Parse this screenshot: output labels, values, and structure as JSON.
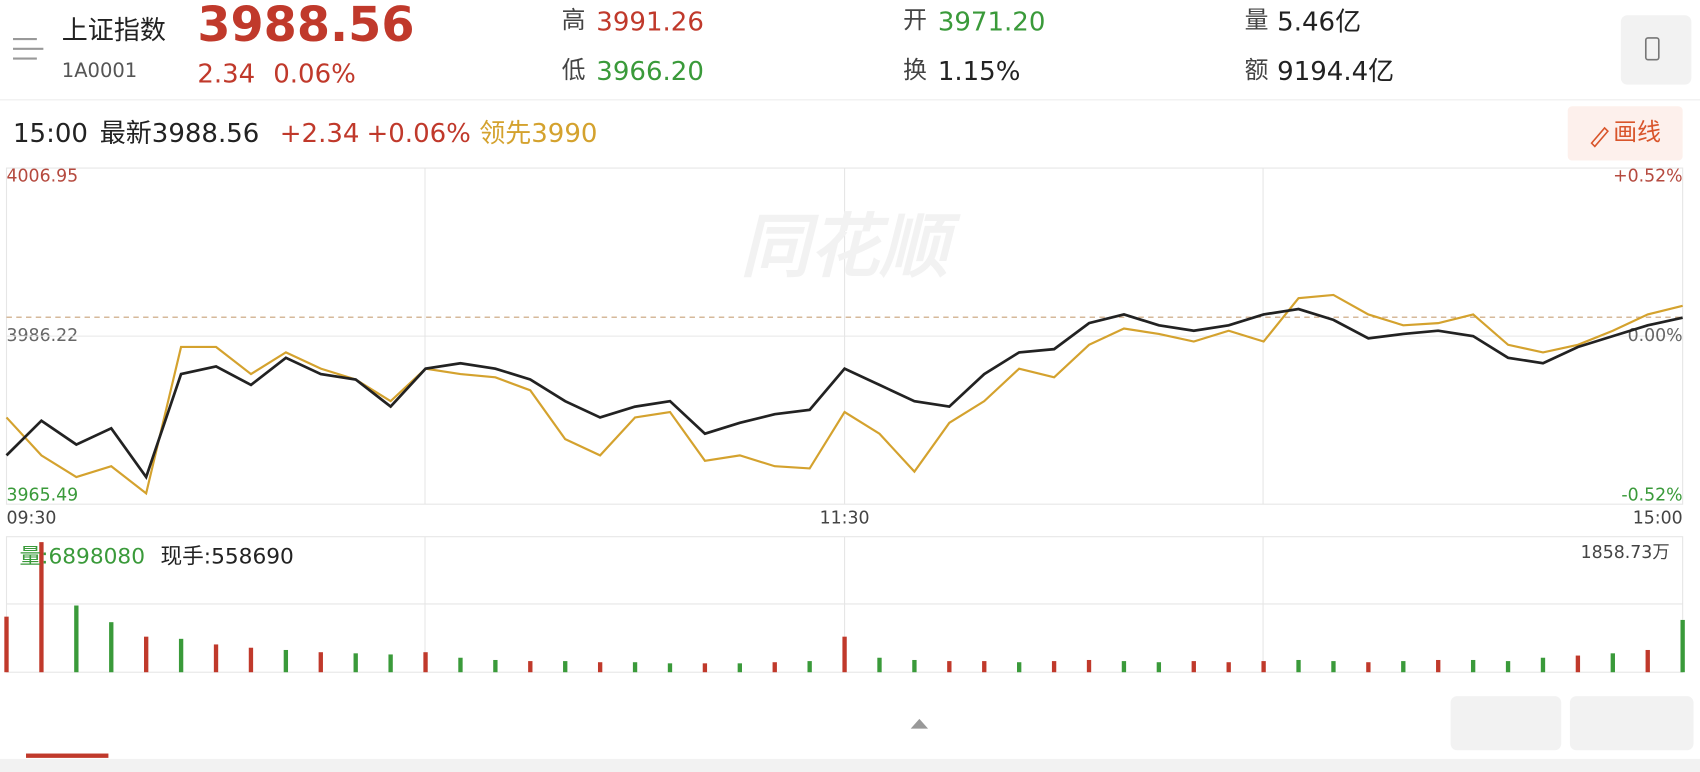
{
  "header": {
    "name": "上证指数",
    "code": "1A0001",
    "price": "3988.56",
    "change": "2.34",
    "change_pct": "0.06%",
    "high_label": "高",
    "high": "3991.26",
    "low_label": "低",
    "low": "3966.20",
    "open_label": "开",
    "open": "3971.20",
    "turnover_label": "换",
    "turnover": "1.15%",
    "volume_label": "量",
    "volume": "5.46亿",
    "amount_label": "额",
    "amount": "9194.4亿"
  },
  "status": {
    "time": "15:00",
    "latest": "最新3988.56",
    "change": "+2.34",
    "change_pct": "+0.06%",
    "leading": "领先3990",
    "draw_button": "画线"
  },
  "chart_data": [
    {
      "type": "line",
      "watermark": "同花顺",
      "categories": [
        "09:30",
        null,
        null,
        null,
        null,
        null,
        null,
        null,
        null,
        null,
        null,
        null,
        null,
        null,
        null,
        null,
        null,
        null,
        null,
        null,
        null,
        null,
        null,
        null,
        "11:30",
        null,
        null,
        null,
        null,
        null,
        null,
        null,
        null,
        null,
        null,
        null,
        null,
        null,
        null,
        null,
        null,
        null,
        null,
        null,
        null,
        null,
        null,
        null,
        "15:00"
      ],
      "series": [
        {
          "color": "#222222",
          "values": [
            3971.51,
            3975.79,
            3972.85,
            3974.85,
            3968.83,
            3981.54,
            3982.47,
            3980.2,
            3983.54,
            3981.54,
            3980.87,
            3977.53,
            3982.21,
            3982.88,
            3982.21,
            3980.87,
            3978.2,
            3976.19,
            3977.53,
            3978.2,
            3974.18,
            3975.52,
            3976.59,
            3977.13,
            3982.21,
            3980.2,
            3978.2,
            3977.53,
            3981.54,
            3984.21,
            3984.62,
            3987.82,
            3988.89,
            3987.56,
            3986.89,
            3987.56,
            3988.89,
            3989.56,
            3988.23,
            3985.95,
            3986.49,
            3986.89,
            3986.22,
            3983.54,
            3982.88,
            3984.88,
            3986.22,
            3987.56,
            3988.49
          ]
        },
        {
          "color": "#d4a22e",
          "values": [
            3976.19,
            3971.51,
            3968.83,
            3970.17,
            3966.83,
            3984.88,
            3984.88,
            3981.54,
            3984.21,
            3982.21,
            3980.87,
            3978.2,
            3982.21,
            3981.54,
            3981.14,
            3979.53,
            3973.51,
            3971.51,
            3976.19,
            3976.86,
            3970.84,
            3971.51,
            3970.17,
            3969.9,
            3976.86,
            3974.18,
            3969.5,
            3975.52,
            3978.2,
            3982.21,
            3981.14,
            3985.15,
            3987.16,
            3986.49,
            3985.55,
            3986.89,
            3985.55,
            3990.9,
            3991.3,
            3988.89,
            3987.56,
            3987.82,
            3988.89,
            3985.15,
            3984.21,
            3985.15,
            3986.89,
            3988.89,
            3989.96
          ]
        }
      ],
      "ylim": [
        3965.49,
        4006.95
      ],
      "yticks": [
        4006.95,
        3986.22,
        3965.49
      ],
      "y2lim": [
        -0.52,
        0.52
      ],
      "y2ticks": [
        {
          "value": 0.52,
          "label": "+0.52%"
        },
        {
          "value": 0,
          "label": "0.00%"
        },
        {
          "value": -0.52,
          "label": "-0.52%"
        }
      ]
    },
    {
      "type": "bar",
      "label": "量:6898080",
      "hand_label": "现手:558690",
      "ylim": [
        0,
        1858.73
      ],
      "yticks": [
        {
          "value": 1858.73,
          "label": "1858.73万"
        }
      ],
      "values": [
        794,
        1858.73,
        953,
        715,
        508,
        477,
        397,
        350,
        318,
        286,
        270,
        254,
        286,
        207,
        175,
        159,
        159,
        143,
        143,
        127,
        127,
        127,
        143,
        159,
        508,
        207,
        175,
        159,
        159,
        143,
        159,
        175,
        159,
        143,
        159,
        143,
        159,
        175,
        159,
        143,
        159,
        175,
        175,
        159,
        207,
        238,
        270,
        318,
        747
      ],
      "colors": [
        "#c0392b",
        "#c0392b",
        "#3a9a3a",
        "#3a9a3a",
        "#c0392b",
        "#3a9a3a",
        "#c0392b",
        "#c0392b",
        "#3a9a3a",
        "#c0392b",
        "#3a9a3a",
        "#3a9a3a",
        "#c0392b",
        "#3a9a3a",
        "#3a9a3a",
        "#c0392b",
        "#3a9a3a",
        "#c0392b",
        "#3a9a3a",
        "#3a9a3a",
        "#c0392b",
        "#3a9a3a",
        "#c0392b",
        "#3a9a3a",
        "#c0392b",
        "#3a9a3a",
        "#3a9a3a",
        "#c0392b",
        "#c0392b",
        "#3a9a3a",
        "#c0392b",
        "#c0392b",
        "#3a9a3a",
        "#3a9a3a",
        "#c0392b",
        "#c0392b",
        "#c0392b",
        "#3a9a3a",
        "#3a9a3a",
        "#c0392b",
        "#3a9a3a",
        "#c0392b",
        "#3a9a3a",
        "#3a9a3a",
        "#3a9a3a",
        "#c0392b",
        "#3a9a3a",
        "#c0392b",
        "#3a9a3a"
      ]
    }
  ]
}
